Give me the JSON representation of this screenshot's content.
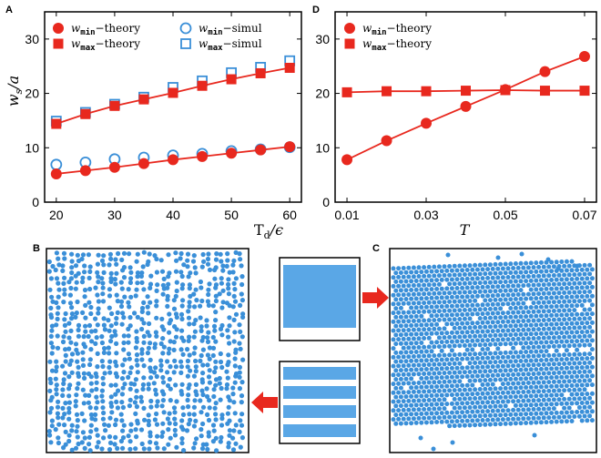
{
  "colors": {
    "theory": "#e8281e",
    "simul": "#3a8fd8",
    "particle": "#3a8fd8",
    "frame": "#000000",
    "arrow": "#e8281e"
  },
  "panels": {
    "A": "A",
    "B": "B",
    "C": "C",
    "D": "D"
  },
  "chart_data": [
    {
      "panel": "A",
      "type": "scatter",
      "xlabel_main": "T",
      "xlabel_sub": "d",
      "xlabel_tail": "/ϵ",
      "ylabel_main": "w",
      "ylabel_sub": "s",
      "ylabel_tail": "/a",
      "xlim": [
        18,
        62
      ],
      "ylim": [
        0,
        35
      ],
      "xticks": [
        20,
        30,
        40,
        50,
        60
      ],
      "yticks": [
        0,
        10,
        20,
        30
      ],
      "series": [
        {
          "name": "wmin-theory",
          "label_main": "w",
          "label_sub": "min",
          "label_tail": "−theory",
          "marker": "circle-filled",
          "line": true,
          "x": [
            20,
            25,
            30,
            35,
            40,
            45,
            50,
            55,
            60
          ],
          "y": [
            5.2,
            5.8,
            6.4,
            7.1,
            7.8,
            8.4,
            9.0,
            9.6,
            10.2
          ]
        },
        {
          "name": "wmax-theory",
          "label_main": "w",
          "label_sub": "max",
          "label_tail": "−theory",
          "marker": "square-filled",
          "line": true,
          "x": [
            20,
            25,
            30,
            35,
            40,
            45,
            50,
            55,
            60
          ],
          "y": [
            14.4,
            16.2,
            17.7,
            18.9,
            20.1,
            21.4,
            22.6,
            23.7,
            24.7
          ]
        },
        {
          "name": "wmin-simul",
          "label_main": "w",
          "label_sub": "min",
          "label_tail": "−simul",
          "marker": "circle-open",
          "line": false,
          "x": [
            20,
            25,
            30,
            35,
            40,
            45,
            50,
            55,
            60
          ],
          "y": [
            6.9,
            7.3,
            7.9,
            8.2,
            8.6,
            8.9,
            9.4,
            9.7,
            10.1
          ]
        },
        {
          "name": "wmax-simul",
          "label_main": "w",
          "label_sub": "max",
          "label_tail": "−simul",
          "marker": "square-open",
          "line": false,
          "x": [
            20,
            25,
            30,
            35,
            40,
            45,
            50,
            55,
            60
          ],
          "y": [
            14.9,
            16.5,
            18.0,
            19.3,
            21.1,
            22.3,
            23.8,
            24.8,
            26.0
          ]
        }
      ]
    },
    {
      "panel": "D",
      "type": "line",
      "xlabel_main": "T",
      "xlim": [
        0.007,
        0.073
      ],
      "ylim": [
        0,
        35
      ],
      "xticks": [
        0.01,
        0.03,
        0.05,
        0.07
      ],
      "yticks": [
        0,
        10,
        20,
        30
      ],
      "series": [
        {
          "name": "wmin-theory",
          "label_main": "w",
          "label_sub": "min",
          "label_tail": "−theory",
          "marker": "circle-filled",
          "line": true,
          "x": [
            0.01,
            0.02,
            0.03,
            0.04,
            0.05,
            0.06,
            0.07
          ],
          "y": [
            7.8,
            11.3,
            14.5,
            17.6,
            20.7,
            24.0,
            26.8
          ]
        },
        {
          "name": "wmax-theory",
          "label_main": "w",
          "label_sub": "max",
          "label_tail": "−theory",
          "marker": "square-filled",
          "line": true,
          "x": [
            0.01,
            0.02,
            0.03,
            0.04,
            0.05,
            0.06,
            0.07
          ],
          "y": [
            20.2,
            20.4,
            20.4,
            20.5,
            20.6,
            20.5,
            20.5
          ]
        }
      ]
    }
  ]
}
